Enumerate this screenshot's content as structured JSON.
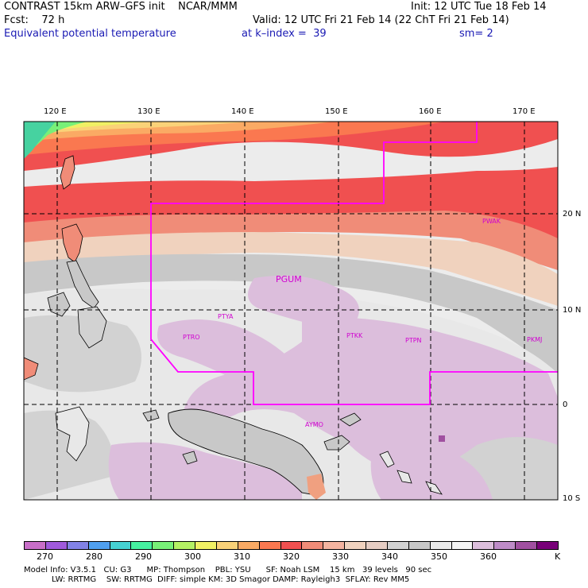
{
  "header": {
    "line1_left": "CONTRAST 15km ARW–GFS init    NCAR/MMM",
    "line1_right": "Init: 12 UTC Tue 18 Feb 14",
    "line2_left": "Fcst:    72 h",
    "line2_right": "Valid: 12 UTC Fri 21 Feb 14 (22 ChT Fri 21 Feb 14)",
    "field": "Equivalent potential temperature",
    "level": "at k–index =  39",
    "smoothing": "sm= 2"
  },
  "map": {
    "lon_labels": [
      "120 E",
      "130 E",
      "140 E",
      "150 E",
      "160 E",
      "170 E"
    ],
    "lat_labels": [
      "20 N",
      "10 N",
      "0",
      "10 S"
    ],
    "stations": [
      {
        "id": "PGUM",
        "name": "PGUM"
      },
      {
        "id": "PTYA",
        "name": "PTYA"
      },
      {
        "id": "PTRO",
        "name": "PTRO"
      },
      {
        "id": "PTKK",
        "name": "PTKK"
      },
      {
        "id": "PTPN",
        "name": "PTPN"
      },
      {
        "id": "PKMJ",
        "name": "PKMJ"
      },
      {
        "id": "PWAK",
        "name": "PWAK"
      },
      {
        "id": "AYMO",
        "name": "AYMO"
      }
    ],
    "domain_outline_color": "#ff00ff"
  },
  "colorbar": {
    "unit": "K",
    "tick_labels": [
      "270",
      "280",
      "290",
      "300",
      "310",
      "320",
      "330",
      "340",
      "350",
      "360"
    ],
    "colors": [
      "#c86ec8",
      "#a05adc",
      "#8282e6",
      "#50a0f0",
      "#46d2d2",
      "#46f0a0",
      "#78f078",
      "#b4f064",
      "#f0f064",
      "#fad278",
      "#faaa64",
      "#fa7850",
      "#f05050",
      "#f08c78",
      "#f5b4a0",
      "#f0d2be",
      "#e6cdc3",
      "#d2d2d2",
      "#c8c8c8",
      "#ebebeb",
      "#f5f5f5",
      "#dcbedc",
      "#be8cc8",
      "#a050a0",
      "#780078"
    ]
  },
  "footer": {
    "line1": "Model Info: V3.5.1   CU: G3      MP: Thompson    PBL: YSU      SF: Noah LSM    15 km   39 levels   90 sec",
    "line2": "           LW: RRTMG    SW: RRTMG  DIFF: simple KM: 3D Smagor DAMP: Rayleigh3  SFLAY: Rev MM5"
  }
}
